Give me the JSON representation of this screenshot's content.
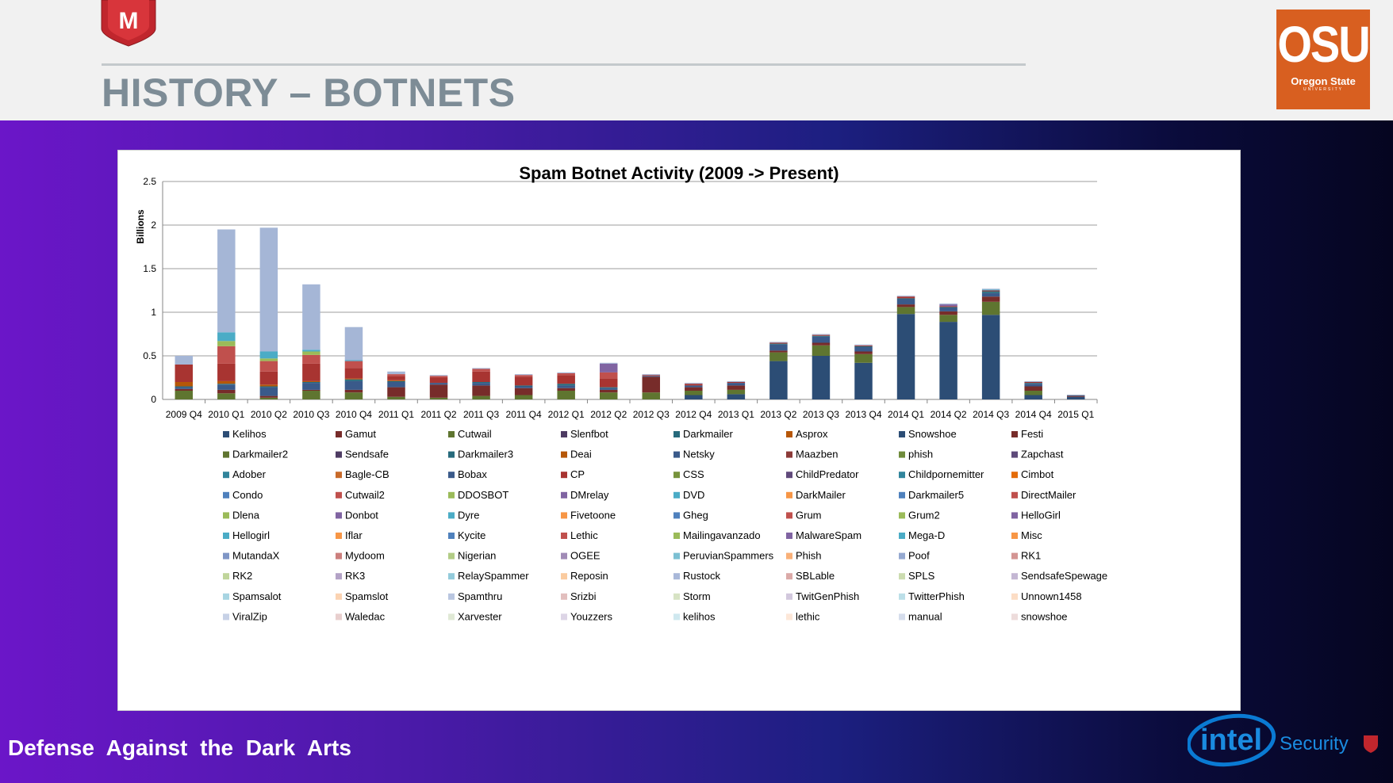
{
  "slide": {
    "title": "HISTORY – BOTNETS",
    "footer": "Defense Against the Dark Arts",
    "osu_logo": {
      "main": "OSU",
      "line": "Oregon State",
      "tiny": "UNIVERSITY"
    },
    "intel_logo": {
      "intel": "intel",
      "security": "Security"
    },
    "mcafee_logo": "M",
    "colors": {
      "header_bg": "#f1f1f1",
      "title": "#7d8c96",
      "osu_orange": "#d85f20",
      "intel_blue": "#0071c5"
    }
  },
  "chart_data": {
    "type": "bar",
    "stacked": true,
    "title": "Spam Botnet Activity (2009 -> Present)",
    "ylabel": "Billions",
    "xlabel": "",
    "ylim": [
      0,
      2.5
    ],
    "yticks": [
      "0",
      "0.5",
      "1",
      "1.5",
      "2",
      "2.5"
    ],
    "grid": true,
    "legend_position": "bottom",
    "categories": [
      "2009 Q4",
      "2010 Q1",
      "2010 Q2",
      "2010 Q3",
      "2010 Q4",
      "2011 Q1",
      "2011 Q2",
      "2011 Q3",
      "2011 Q4",
      "2012 Q1",
      "2012 Q2",
      "2012 Q3",
      "2012 Q4",
      "2013 Q1",
      "2013 Q2",
      "2013 Q3",
      "2013 Q4",
      "2014 Q1",
      "2014 Q2",
      "2014 Q3",
      "2014 Q4",
      "2015 Q1"
    ],
    "stack_segments": [
      {
        "name": "Snowshoe",
        "color": "#2c4d75",
        "values": [
          0,
          0,
          0,
          0,
          0,
          0,
          0,
          0,
          0,
          0,
          0,
          0,
          0.05,
          0.06,
          0.44,
          0.5,
          0.42,
          0.98,
          0.89,
          0.97,
          0.05,
          0.03
        ]
      },
      {
        "name": "Cutwail",
        "color": "#5f7530",
        "values": [
          0.1,
          0.07,
          0.02,
          0.1,
          0.08,
          0.03,
          0.02,
          0.04,
          0.05,
          0.1,
          0.08,
          0.08,
          0.05,
          0.05,
          0.1,
          0.12,
          0.1,
          0.08,
          0.08,
          0.15,
          0.05,
          0
        ]
      },
      {
        "name": "Gamut",
        "color": "#772c2a",
        "values": [
          0.02,
          0.04,
          0.02,
          0.01,
          0.03,
          0.11,
          0.15,
          0.12,
          0.08,
          0.03,
          0.03,
          0.18,
          0.04,
          0.05,
          0.02,
          0.03,
          0.03,
          0.03,
          0.04,
          0.06,
          0.05,
          0.01
        ]
      },
      {
        "name": "Kelihos",
        "color": "#3a5a8a",
        "values": [
          0.02,
          0.06,
          0.1,
          0.08,
          0.1,
          0.06,
          0.02,
          0.03,
          0.02,
          0.03,
          0.02,
          0.01,
          0.02,
          0.03,
          0.07,
          0.07,
          0.05,
          0.06,
          0.04,
          0.04,
          0.03,
          0.01
        ]
      },
      {
        "name": "Darkmailer",
        "color": "#276a7c",
        "values": [
          0.01,
          0.01,
          0.01,
          0.01,
          0.02,
          0.01,
          0,
          0.01,
          0.01,
          0.02,
          0.01,
          0,
          0,
          0,
          0.01,
          0.01,
          0.01,
          0.01,
          0.01,
          0.02,
          0.01,
          0
        ]
      },
      {
        "name": "Asprox",
        "color": "#b65708",
        "values": [
          0.05,
          0.03,
          0.02,
          0.01,
          0.01,
          0.01,
          0,
          0,
          0,
          0,
          0,
          0,
          0,
          0,
          0,
          0,
          0,
          0,
          0,
          0,
          0,
          0
        ]
      },
      {
        "name": "Festi",
        "color": "#a83431",
        "values": [
          0.2,
          0.2,
          0.15,
          0.2,
          0.12,
          0.05,
          0.06,
          0.12,
          0.1,
          0.1,
          0.1,
          0.01,
          0.02,
          0.01,
          0.01,
          0.01,
          0.01,
          0.02,
          0.01,
          0.01,
          0.01,
          0
        ]
      },
      {
        "name": "CP",
        "color": "#c0504d",
        "values": [
          0,
          0.2,
          0.12,
          0.1,
          0.08,
          0.02,
          0.02,
          0.03,
          0.02,
          0.02,
          0.07,
          0,
          0,
          0,
          0,
          0,
          0,
          0,
          0,
          0,
          0,
          0
        ]
      },
      {
        "name": "Grum2",
        "color": "#9bbb59",
        "values": [
          0,
          0.06,
          0.03,
          0.04,
          0,
          0,
          0,
          0,
          0,
          0,
          0,
          0,
          0,
          0,
          0,
          0,
          0,
          0,
          0,
          0,
          0,
          0
        ]
      },
      {
        "name": "Dyre",
        "color": "#4bacc6",
        "values": [
          0,
          0.1,
          0.08,
          0.02,
          0.01,
          0,
          0,
          0,
          0,
          0,
          0,
          0,
          0,
          0,
          0,
          0,
          0,
          0,
          0,
          0.01,
          0,
          0
        ]
      },
      {
        "name": "MalwareSpam",
        "color": "#8064a2",
        "values": [
          0,
          0,
          0,
          0,
          0,
          0,
          0,
          0,
          0,
          0,
          0.1,
          0,
          0,
          0,
          0,
          0,
          0,
          0,
          0.02,
          0,
          0,
          0
        ]
      },
      {
        "name": "Spamthru",
        "color": "#a5b6d6",
        "values": [
          0.1,
          1.18,
          1.42,
          0.75,
          0.38,
          0.03,
          0.01,
          0.01,
          0.01,
          0.01,
          0.01,
          0.01,
          0.01,
          0.01,
          0.01,
          0.01,
          0.01,
          0.01,
          0.01,
          0.01,
          0.01,
          0
        ]
      }
    ],
    "legend": [
      "Kelihos",
      "Gamut",
      "Cutwail",
      "Slenfbot",
      "Darkmailer",
      "Asprox",
      "Snowshoe",
      "Festi",
      "Darkmailer2",
      "Sendsafe",
      "Darkmailer3",
      "Deai",
      "Netsky",
      "Maazben",
      "phish",
      "Zapchast",
      "Adober",
      "Bagle-CB",
      "Bobax",
      "CP",
      "CSS",
      "ChildPredator",
      "Childpornemitter",
      "Cimbot",
      "Condo",
      "Cutwail2",
      "DDOSBOT",
      "DMrelay",
      "DVD",
      "DarkMailer",
      "Darkmailer5",
      "DirectMailer",
      "Dlena",
      "Donbot",
      "Dyre",
      "Fivetoone",
      "Gheg",
      "Grum",
      "Grum2",
      "HelloGirl",
      "Hellogirl",
      "Iflar",
      "Kycite",
      "Lethic",
      "Mailingavanzado",
      "MalwareSpam",
      "Mega-D",
      "Misc",
      "MutandaX",
      "Mydoom",
      "Nigerian",
      "OGEE",
      "PeruvianSpammers",
      "Phish",
      "Poof",
      "RK1",
      "RK2",
      "RK3",
      "RelaySpammer",
      "Reposin",
      "Rustock",
      "SBLable",
      "SPLS",
      "SendsafeSpewage",
      "Spamsalot",
      "Spamslot",
      "Spamthru",
      "Srizbi",
      "Storm",
      "TwitGenPhish",
      "TwitterPhish",
      "Unnown1458",
      "ViralZip",
      "Waledac",
      "Xarvester",
      "Youzzers",
      "kelihos",
      "lethic",
      "manual",
      "snowshoe"
    ],
    "legend_colors": [
      "#2c4d75",
      "#772c2a",
      "#5f7530",
      "#4d3b62",
      "#276a7c",
      "#b65708",
      "#2c4d75",
      "#772c2a",
      "#5f7530",
      "#4d3b62",
      "#276a7c",
      "#b65708",
      "#3a5a8a",
      "#8b3a38",
      "#6f8b3b",
      "#5e4a7a",
      "#31849b",
      "#c86a2a",
      "#3a5a8a",
      "#a83431",
      "#77933c",
      "#604a7b",
      "#31859c",
      "#e46c0a",
      "#4f81bd",
      "#c0504d",
      "#9bbb59",
      "#8064a2",
      "#4bacc6",
      "#f79646",
      "#4f81bd",
      "#c0504d",
      "#9bbb59",
      "#8064a2",
      "#4bacc6",
      "#f79646",
      "#4f81bd",
      "#c0504d",
      "#9bbb59",
      "#8064a2",
      "#4bacc6",
      "#f79646",
      "#4f81bd",
      "#c0504d",
      "#9bbb59",
      "#8064a2",
      "#4bacc6",
      "#f79646",
      "#7f96c6",
      "#cc7f7d",
      "#b2cc86",
      "#a08bb6",
      "#7cc0d3",
      "#f9b078",
      "#95a9d1",
      "#d49593",
      "#c0d59b",
      "#b3a2c6",
      "#93cbdb",
      "#facb9f",
      "#a9b8d9",
      "#dbaaa8",
      "#ccdcb0",
      "#c4b7d3",
      "#a8d5e2",
      "#fbd3b2",
      "#b9c6e0",
      "#e2bfbe",
      "#d7e3c4",
      "#d2c8dd",
      "#bcdfe8",
      "#fcddc5",
      "#c7d1e6",
      "#e8cfce",
      "#e0e9d5",
      "#ddd5e6",
      "#cfe8ef",
      "#fde7d8",
      "#d5ddec",
      "#eddcdb"
    ]
  }
}
